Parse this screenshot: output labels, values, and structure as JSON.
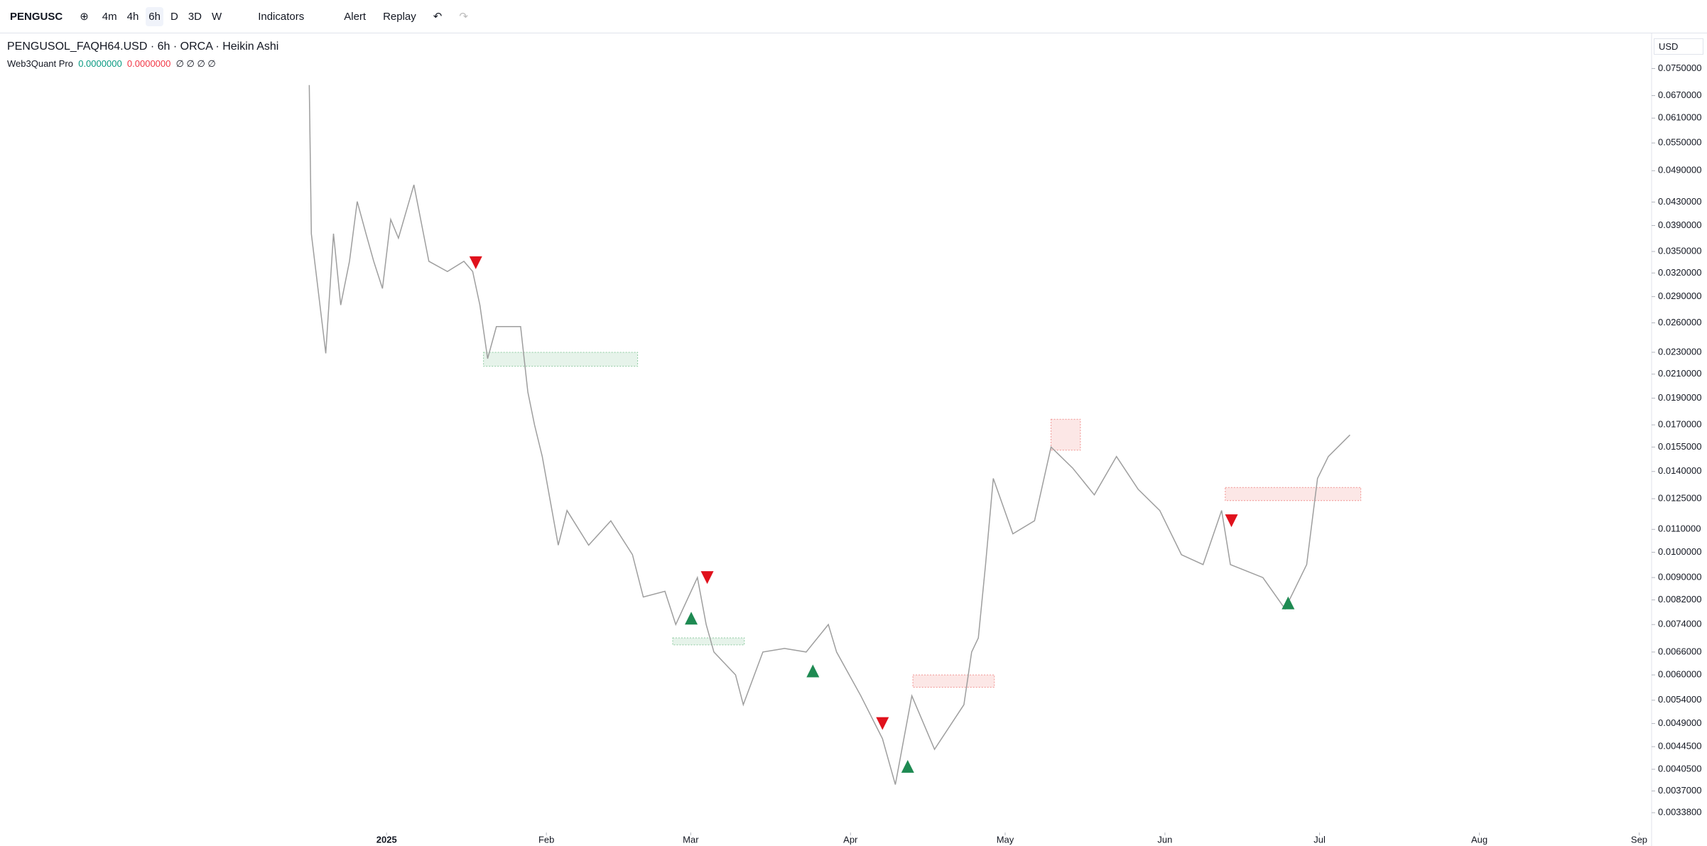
{
  "toolbar": {
    "symbol": "PENGUSC",
    "intervals": [
      "4m",
      "4h",
      "6h",
      "D",
      "3D",
      "W"
    ],
    "active_interval": 2,
    "indicators": "Indicators",
    "alert": "Alert",
    "replay": "Replay"
  },
  "legend": {
    "title": "PENGUSOL_FAQH64.USD · 6h · ORCA · Heikin Ashi",
    "indicator": "Web3Quant Pro",
    "value_a": "0.0000000",
    "value_b": "0.0000000",
    "rest": "∅ ∅ ∅ ∅"
  },
  "currency": "USD",
  "chart_data": {
    "type": "line",
    "log_scale": true,
    "grid": false,
    "xlim": [
      -75,
      245
    ],
    "ylim": [
      0.00314,
      0.0863
    ],
    "xticks": [
      {
        "value": 0,
        "label": "2025"
      },
      {
        "value": 31,
        "label": "Feb"
      },
      {
        "value": 59,
        "label": "Mar"
      },
      {
        "value": 90,
        "label": "Apr"
      },
      {
        "value": 120,
        "label": "May"
      },
      {
        "value": 151,
        "label": "Jun"
      },
      {
        "value": 181,
        "label": "Jul"
      },
      {
        "value": 212,
        "label": "Aug"
      },
      {
        "value": 243,
        "label": "Sep"
      }
    ],
    "yticks": [
      {
        "value": 0.075,
        "label": "0.0750000"
      },
      {
        "value": 0.067,
        "label": "0.0670000"
      },
      {
        "value": 0.061,
        "label": "0.0610000"
      },
      {
        "value": 0.055,
        "label": "0.0550000"
      },
      {
        "value": 0.049,
        "label": "0.0490000"
      },
      {
        "value": 0.043,
        "label": "0.0430000"
      },
      {
        "value": 0.039,
        "label": "0.0390000"
      },
      {
        "value": 0.035,
        "label": "0.0350000"
      },
      {
        "value": 0.032,
        "label": "0.0320000"
      },
      {
        "value": 0.029,
        "label": "0.0290000"
      },
      {
        "value": 0.026,
        "label": "0.0260000"
      },
      {
        "value": 0.023,
        "label": "0.0230000"
      },
      {
        "value": 0.021,
        "label": "0.0210000"
      },
      {
        "value": 0.019,
        "label": "0.0190000"
      },
      {
        "value": 0.017,
        "label": "0.0170000"
      },
      {
        "value": 0.0155,
        "label": "0.0155000"
      },
      {
        "value": 0.014,
        "label": "0.0140000"
      },
      {
        "value": 0.0125,
        "label": "0.0125000"
      },
      {
        "value": 0.011,
        "label": "0.0110000"
      },
      {
        "value": 0.01,
        "label": "0.0100000"
      },
      {
        "value": 0.009,
        "label": "0.0090000"
      },
      {
        "value": 0.0082,
        "label": "0.0082000"
      },
      {
        "value": 0.0074,
        "label": "0.0074000"
      },
      {
        "value": 0.0066,
        "label": "0.0066000"
      },
      {
        "value": 0.006,
        "label": "0.0060000"
      },
      {
        "value": 0.0054,
        "label": "0.0054000"
      },
      {
        "value": 0.0049,
        "label": "0.0049000"
      },
      {
        "value": 0.00445,
        "label": "0.0044500"
      },
      {
        "value": 0.00405,
        "label": "0.0040500"
      },
      {
        "value": 0.0037,
        "label": "0.0037000"
      },
      {
        "value": 0.00338,
        "label": "0.0033800"
      }
    ],
    "series": [
      {
        "color": "#9e9e9e",
        "x": [
          -15,
          -14.6,
          -11.8,
          -10.3,
          -8.9,
          -7.2,
          -5.7,
          -4,
          -2.5,
          -0.8,
          0.8,
          2.3,
          5.3,
          8.2,
          11.8,
          15,
          16.7,
          18.1,
          19.6,
          21.3,
          24.5,
          26,
          27.4,
          28.7,
          30.2,
          33.3,
          35,
          39.2,
          43.5,
          47.7,
          49.8,
          54,
          56.1,
          60.3,
          62,
          63.5,
          67.7,
          69.2,
          73,
          77.2,
          81.4,
          85.7,
          87.3,
          92,
          96.2,
          98.7,
          101.9,
          106.3,
          112,
          113.5,
          114.8,
          116.2,
          117.7,
          121.5,
          125.7,
          128.9,
          133.1,
          137.3,
          141.6,
          145.8,
          150,
          154.2,
          158.4,
          162,
          163.7,
          170,
          174.3,
          178.5,
          180.6,
          182.7,
          186.9
        ],
        "values": [
          0.07,
          0.0377,
          0.0229,
          0.0377,
          0.028,
          0.0336,
          0.0431,
          0.0377,
          0.0336,
          0.03,
          0.04,
          0.037,
          0.0462,
          0.0336,
          0.0322,
          0.0336,
          0.0322,
          0.028,
          0.0224,
          0.0256,
          0.0256,
          0.0256,
          0.0195,
          0.017,
          0.0149,
          0.0103,
          0.0119,
          0.0103,
          0.0114,
          0.0099,
          0.0083,
          0.0085,
          0.0074,
          0.009,
          0.0074,
          0.0066,
          0.006,
          0.0053,
          0.0066,
          0.0067,
          0.0066,
          0.0074,
          0.0066,
          0.0055,
          0.0046,
          0.0038,
          0.0055,
          0.0044,
          0.0053,
          0.0066,
          0.007,
          0.0095,
          0.0136,
          0.0108,
          0.0114,
          0.0155,
          0.0142,
          0.0127,
          0.0149,
          0.013,
          0.0119,
          0.0099,
          0.0095,
          0.0119,
          0.0095,
          0.009,
          0.0079,
          0.0095,
          0.0136,
          0.0149,
          0.0163
        ]
      }
    ],
    "zones": [
      {
        "x0": 18.8,
        "x1": 48.7,
        "y0": 0.0217,
        "y1": 0.023,
        "color": "#2e9e4f"
      },
      {
        "x0": 55.5,
        "x1": 69.4,
        "y0": 0.0068,
        "y1": 0.007,
        "color": "#2e9e4f"
      },
      {
        "x0": 102.1,
        "x1": 117.9,
        "y0": 0.0057,
        "y1": 0.006,
        "color": "#e53935"
      },
      {
        "x0": 128.9,
        "x1": 134.6,
        "y0": 0.0153,
        "y1": 0.0174,
        "color": "#e53935"
      },
      {
        "x0": 162.7,
        "x1": 189,
        "y0": 0.0124,
        "y1": 0.0131,
        "color": "#e53935"
      }
    ],
    "signals": [
      {
        "x": 17.3,
        "value": 0.0334,
        "dir": "down"
      },
      {
        "x": 62.2,
        "value": 0.009,
        "dir": "down"
      },
      {
        "x": 96.2,
        "value": 0.0049,
        "dir": "down"
      },
      {
        "x": 163.9,
        "value": 0.0114,
        "dir": "down"
      },
      {
        "x": 59.1,
        "value": 0.0076,
        "dir": "up"
      },
      {
        "x": 82.7,
        "value": 0.0061,
        "dir": "up"
      },
      {
        "x": 101.1,
        "value": 0.0041,
        "dir": "up"
      },
      {
        "x": 174.9,
        "value": 0.0081,
        "dir": "up"
      }
    ]
  }
}
